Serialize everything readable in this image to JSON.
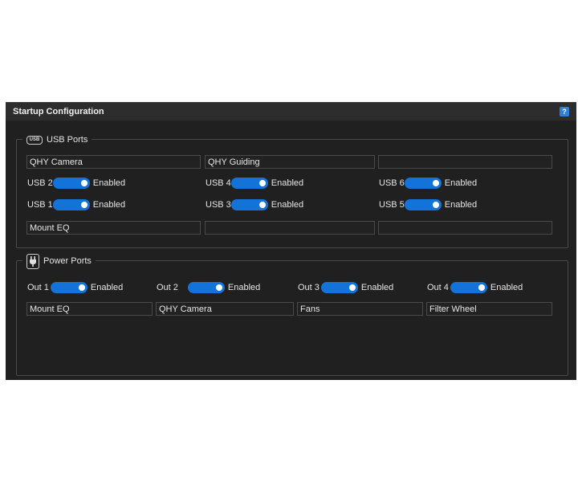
{
  "window": {
    "title": "Startup Configuration",
    "help_label": "?"
  },
  "usb": {
    "legend": "USB Ports",
    "logo_text": "USB",
    "fields_top": [
      "QHY Camera",
      "QHY Guiding",
      ""
    ],
    "ports": [
      {
        "label": "USB 2",
        "state": "Enabled"
      },
      {
        "label": "USB 4",
        "state": "Enabled"
      },
      {
        "label": "USB 6",
        "state": "Enabled"
      },
      {
        "label": "USB 1",
        "state": "Enabled"
      },
      {
        "label": "USB 3",
        "state": "Enabled"
      },
      {
        "label": "USB 5",
        "state": "Enabled"
      }
    ],
    "fields_bottom": [
      "Mount EQ",
      "",
      ""
    ]
  },
  "power": {
    "legend": "Power Ports",
    "ports": [
      {
        "label": "Out 1",
        "state": "Enabled",
        "name": "Mount EQ"
      },
      {
        "label": "Out 2",
        "state": "Enabled",
        "name": "QHY Camera"
      },
      {
        "label": "Out 3",
        "state": "Enabled",
        "name": "Fans"
      },
      {
        "label": "Out 4",
        "state": "Enabled",
        "name": "Filter Wheel"
      }
    ]
  },
  "colors": {
    "accent": "#1473d8",
    "background": "#202020"
  }
}
